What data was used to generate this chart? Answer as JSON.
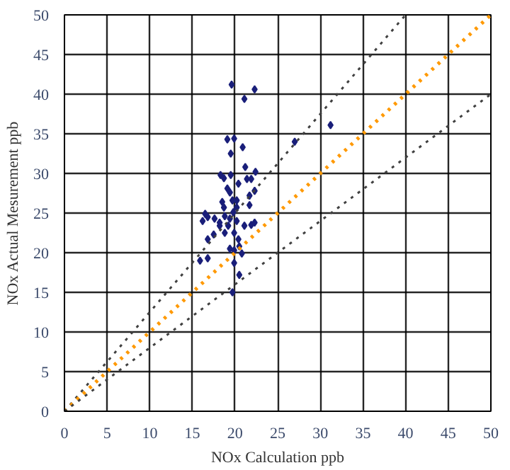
{
  "chart_data": {
    "type": "scatter",
    "xlabel": "NOx Calculation ppb",
    "ylabel": "NOx Actual Mesurement ppb",
    "xlim": [
      0,
      50
    ],
    "ylim": [
      0,
      50
    ],
    "xticks": [
      0,
      5,
      10,
      15,
      20,
      25,
      30,
      35,
      40,
      45,
      50
    ],
    "yticks": [
      0,
      5,
      10,
      15,
      20,
      25,
      30,
      35,
      40,
      45,
      50
    ],
    "grid": true,
    "series": [
      {
        "marker": "diamond",
        "color": "#1a1f7a",
        "x": [
          19.6,
          22.3,
          21.1,
          31.2,
          27.0,
          19.1,
          19.9,
          20.9,
          19.5,
          21.2,
          22.4,
          18.3,
          18.7,
          19.5,
          20.4,
          21.4,
          21.9,
          19.1,
          19.4,
          22.3,
          21.7,
          18.5,
          18.7,
          19.7,
          20.2,
          21.7,
          16.5,
          16.8,
          16.2,
          17.6,
          18.8,
          19.4,
          19.8,
          20.2,
          18.2,
          19.2,
          21.1,
          21.9,
          22.3,
          17.5,
          18.8,
          19.9,
          16.8,
          20.4,
          19.4,
          19.9,
          20.8,
          15.9,
          16.8,
          19.9,
          20.5,
          19.7,
          20.5,
          20.2,
          18.2
        ],
        "values": [
          41.2,
          40.6,
          39.4,
          36.1,
          34.0,
          34.3,
          34.4,
          33.3,
          32.5,
          30.8,
          30.2,
          29.8,
          29.4,
          29.8,
          28.7,
          29.3,
          29.3,
          28.1,
          27.6,
          27.8,
          27.2,
          26.4,
          25.7,
          26.6,
          26.6,
          26.0,
          24.9,
          24.5,
          24.0,
          24.3,
          24.6,
          24.3,
          25.1,
          24.0,
          23.4,
          23.4,
          23.4,
          23.5,
          23.8,
          22.3,
          22.5,
          22.5,
          21.7,
          21.7,
          20.5,
          20.3,
          19.9,
          19.0,
          19.3,
          18.7,
          17.2,
          15.0,
          20.8,
          25.7,
          23.8
        ]
      },
      {
        "type": "line",
        "color": "#404040",
        "line_style": "dotted",
        "x": [
          0,
          40
        ],
        "values": [
          0,
          50
        ]
      },
      {
        "type": "line",
        "color": "#ff9900",
        "line_style": "dotted",
        "x": [
          0,
          50
        ],
        "values": [
          0,
          50
        ]
      },
      {
        "type": "line",
        "color": "#404040",
        "line_style": "dotted",
        "x": [
          0,
          50
        ],
        "values": [
          0,
          40
        ]
      }
    ]
  }
}
